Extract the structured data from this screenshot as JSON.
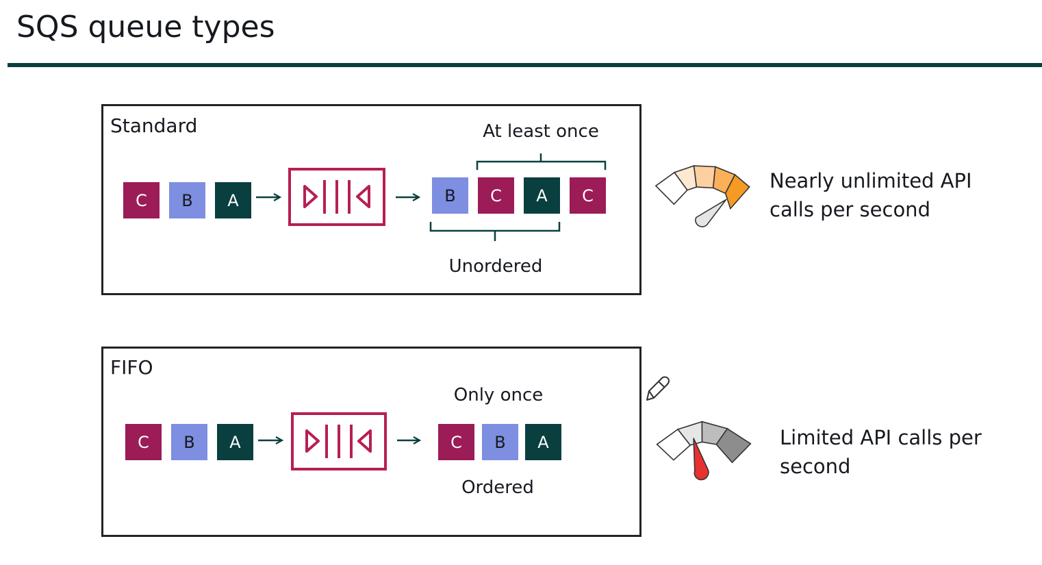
{
  "title": "SQS queue types",
  "colors": {
    "C": "#9b1c56",
    "B": "#7e8ee0",
    "A": "#093f3f",
    "rule": "#093f3f",
    "queue_icon": "#b61f55",
    "bracket": "#093f3f",
    "gauge_orange": [
      "#ffffff",
      "#fde8d2",
      "#fdd0a2",
      "#fcb05a",
      "#f59a23"
    ],
    "gauge_gray": [
      "#ffffff",
      "#e6e6e6",
      "#bdbdbd",
      "#8d8d8d"
    ],
    "needle_red": "#e8322f",
    "needle_gray": "#e5e5e5"
  },
  "standard": {
    "label": "Standard",
    "input": [
      "C",
      "B",
      "A"
    ],
    "output": [
      "B",
      "C",
      "A",
      "C"
    ],
    "top_label": "At least once",
    "bottom_label": "Unordered",
    "caption_line1": "Nearly unlimited API",
    "caption_line2": "calls per second",
    "gauge_icon": "speedometer-high-icon"
  },
  "fifo": {
    "label": "FIFO",
    "input": [
      "C",
      "B",
      "A"
    ],
    "output": [
      "C",
      "B",
      "A"
    ],
    "top_label": "Only once",
    "bottom_label": "Ordered",
    "caption_line1": "Limited API calls per",
    "caption_line2": "second",
    "gauge_icon": "speedometer-low-icon"
  },
  "icons": [
    "queue-icon",
    "arrow-right-icon",
    "pencil-icon"
  ]
}
